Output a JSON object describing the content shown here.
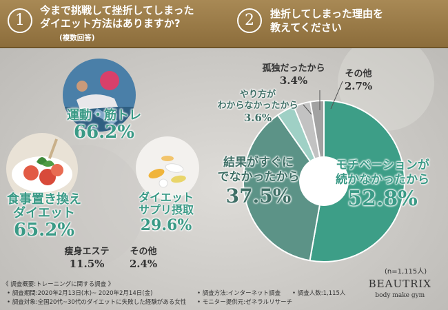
{
  "q1": {
    "number": "1",
    "line1": "今まで挑戦して挫折してしまった",
    "line2": "ダイエット方法はありますか?",
    "note": "(複数回答)"
  },
  "q2": {
    "number": "2",
    "line1": "挫折してしまった理由を",
    "line2": "教えてください"
  },
  "chart_data": [
    {
      "type": "bar",
      "title": "今まで挑戦して挫折してしまったダイエット方法はありますか?(複数回答)",
      "categories": [
        "運動・筋トレ",
        "食事置き換えダイエット",
        "ダイエットサプリ摂取",
        "痩身エステ",
        "その他"
      ],
      "values": [
        66.2,
        65.2,
        29.6,
        11.5,
        2.4
      ],
      "labels": {
        "exercise": {
          "title": "運動・筋トレ",
          "value": "66.2%"
        },
        "meal_line1": "食事置き換え",
        "meal_line2": "ダイエット",
        "meal_value": "65.2%",
        "supp_line1": "ダイエット",
        "supp_line2": "サプリ摂取",
        "supp_value": "29.6%",
        "esthe": {
          "title": "痩身エステ",
          "value": "11.5%"
        },
        "other": {
          "title": "その他",
          "value": "2.4%"
        }
      }
    },
    {
      "type": "pie",
      "title": "挫折してしまった理由を教えてください",
      "categories": [
        "モチベーションが続かなかったから",
        "結果がすぐにでなかったから",
        "やり方がわからなかったから",
        "孤独だったから",
        "その他"
      ],
      "values": [
        52.8,
        37.5,
        3.6,
        3.4,
        2.7
      ],
      "colors": [
        "#3d9e87",
        "#5c9387",
        "#9fd0c5",
        "#c2c2c2",
        "#a2a2a2"
      ],
      "labels": {
        "motivation_line1": "モチベーションが",
        "motivation_line2": "続かなかったから",
        "motivation_value": "52.8%",
        "result_line1": "結果がすぐに",
        "result_line2": "でなかったから",
        "result_value": "37.5%",
        "method_line1": "やり方が",
        "method_line2": "わからなかったから",
        "method_value": "3.6%",
        "lonely": {
          "title": "孤独だったから",
          "value": "3.4%"
        },
        "other": {
          "title": "その他",
          "value": "2.7%"
        }
      }
    }
  ],
  "sample_size": "(n=1,115人)",
  "footer": {
    "l1": "《 調査概要:トレーニングに関する調査 》",
    "l2": "• 調査期間:2020年2月13日(木)~ 2020年2月14日(金)",
    "l3": "• 調査対象:全国20代~30代のダイエットに失敗した経験がある女性",
    "l4": "• 調査方法:インターネット調査",
    "l5": "• 調査人数:1,115人",
    "l6": "• モニター提供元:ゼネラルリサーチ"
  },
  "brand": {
    "name": "BEAUTRIX",
    "tagline": "body make gym"
  },
  "colors": {
    "header": "#9a7b47",
    "accent_green": "#3a9a86"
  }
}
